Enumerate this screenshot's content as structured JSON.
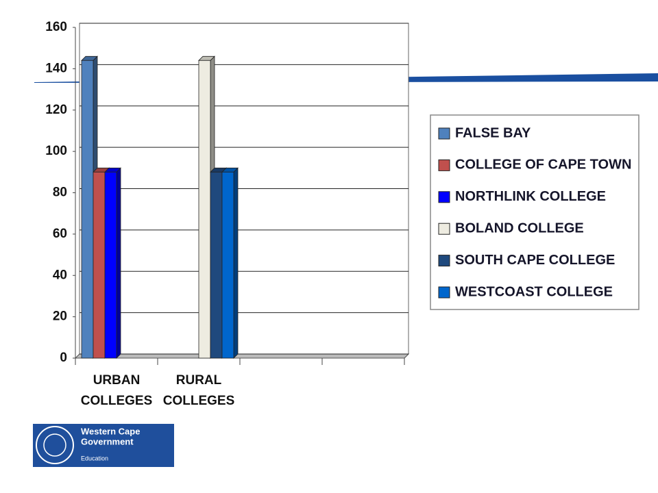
{
  "chart_data": {
    "type": "bar",
    "categories": [
      "URBAN COLLEGES",
      "RURAL COLLEGES",
      null,
      null
    ],
    "series": [
      {
        "name": "FALSE BAY",
        "color": "#4f81bd",
        "values": [
          144,
          null,
          null,
          null
        ]
      },
      {
        "name": "COLLEGE OF CAPE TOWN",
        "color": "#c0504d",
        "values": [
          90,
          null,
          null,
          null
        ]
      },
      {
        "name": "NORTHLINK COLLEGE",
        "color": "#0000ff",
        "values": [
          90,
          null,
          null,
          null
        ]
      },
      {
        "name": "BOLAND COLLEGE",
        "color": "#eeece1",
        "values": [
          null,
          144,
          null,
          null
        ]
      },
      {
        "name": "SOUTH CAPE COLLEGE",
        "color": "#1f497d",
        "values": [
          null,
          90,
          null,
          null
        ]
      },
      {
        "name": "WESTCOAST COLLEGE",
        "color": "#0066cc",
        "values": [
          null,
          90,
          null,
          null
        ]
      }
    ],
    "ylim": [
      0,
      160
    ],
    "yticks": [
      0,
      20,
      40,
      60,
      80,
      100,
      120,
      140,
      160
    ],
    "grid": true,
    "legend": "right"
  },
  "logo": {
    "lines": [
      "Western Cape",
      "Government",
      "Education"
    ]
  }
}
